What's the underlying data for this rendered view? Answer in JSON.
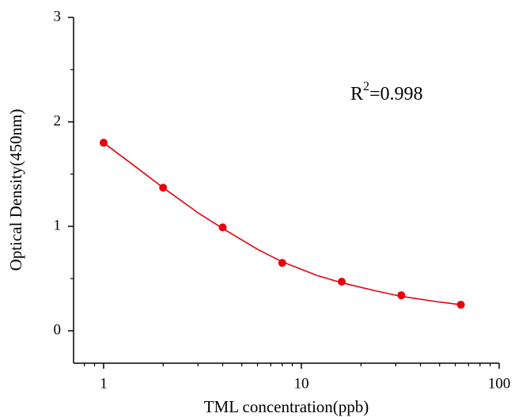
{
  "chart_data": {
    "type": "scatter",
    "xlabel": "TML concentration(ppb)",
    "ylabel": "Optical Density(450nm)",
    "annotation": [
      "R",
      "2",
      "=0.998"
    ],
    "x": [
      1,
      2,
      4,
      8,
      16,
      32,
      64
    ],
    "values": [
      1.8,
      1.37,
      0.99,
      0.65,
      0.47,
      0.34,
      0.25
    ],
    "color": "#e8000b",
    "fit": {
      "x": [
        1,
        1.5,
        2,
        3,
        4,
        6,
        8,
        12,
        16,
        24,
        32,
        48,
        64
      ],
      "values": [
        1.8,
        1.55,
        1.37,
        1.13,
        0.98,
        0.78,
        0.66,
        0.53,
        0.46,
        0.38,
        0.33,
        0.28,
        0.25
      ],
      "color": "#e8000b"
    },
    "xscale": "log",
    "xlim": [
      0.705,
      100
    ],
    "xticks": [
      1,
      10,
      100
    ],
    "xminor_ticks": [
      0.8,
      0.9,
      2,
      3,
      4,
      5,
      6,
      7,
      8,
      9,
      20,
      30,
      40,
      50,
      60,
      70,
      80,
      90
    ],
    "ylim": [
      -0.31,
      3
    ],
    "yticks": [
      0,
      1,
      2,
      3
    ],
    "yminor_ticks": [
      0.5,
      1.5,
      2.5
    ]
  }
}
